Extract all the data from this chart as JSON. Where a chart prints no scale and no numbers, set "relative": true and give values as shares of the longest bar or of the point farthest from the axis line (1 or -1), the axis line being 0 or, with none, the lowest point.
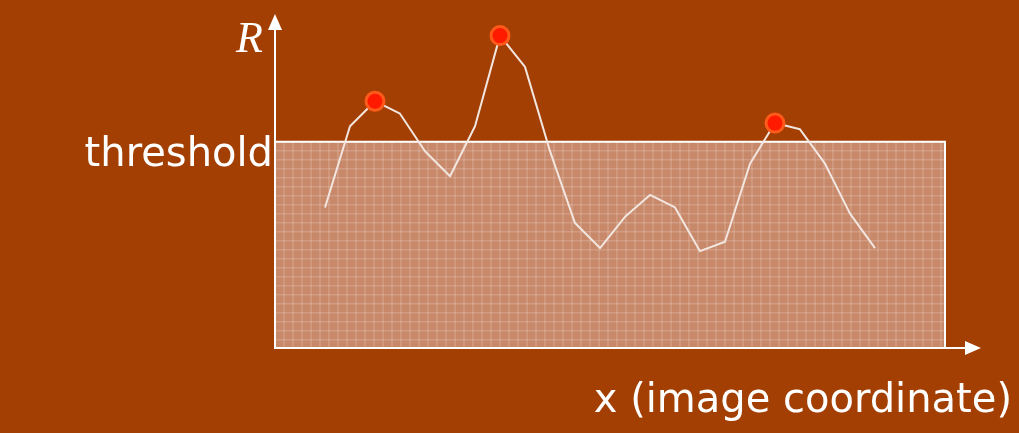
{
  "chart_data": {
    "type": "line",
    "relative": true,
    "ylabel": "R",
    "xlabel": "x (image coordinate)",
    "categories": [
      null,
      null,
      null,
      null,
      null,
      null,
      null,
      null,
      null,
      null,
      null,
      null,
      null,
      null,
      null,
      null,
      null,
      null,
      null,
      null,
      null,
      null,
      null
    ],
    "series": [
      {
        "type": "line",
        "color": "#f2e6e0",
        "values": [
          0.45,
          0.71,
          0.79,
          0.75,
          0.63,
          0.55,
          0.71,
          1,
          0.9,
          0.63,
          0.4,
          0.32,
          0.42,
          0.49,
          0.45,
          0.31,
          0.34,
          0.59,
          0.72,
          0.7,
          0.59,
          0.43,
          0.32
        ],
        "colors": [
          null,
          null,
          "#ff1a00",
          null,
          null,
          null,
          null,
          "#ff1a00",
          null,
          null,
          null,
          null,
          null,
          null,
          null,
          null,
          null,
          null,
          "#ff1a00",
          null,
          null,
          null,
          null
        ]
      }
    ],
    "grid": false,
    "bands": [
      {
        "axis": "y",
        "from": 0,
        "to": 0.66,
        "label": "threshold",
        "color": "#c8896a"
      }
    ],
    "legend": false
  }
}
